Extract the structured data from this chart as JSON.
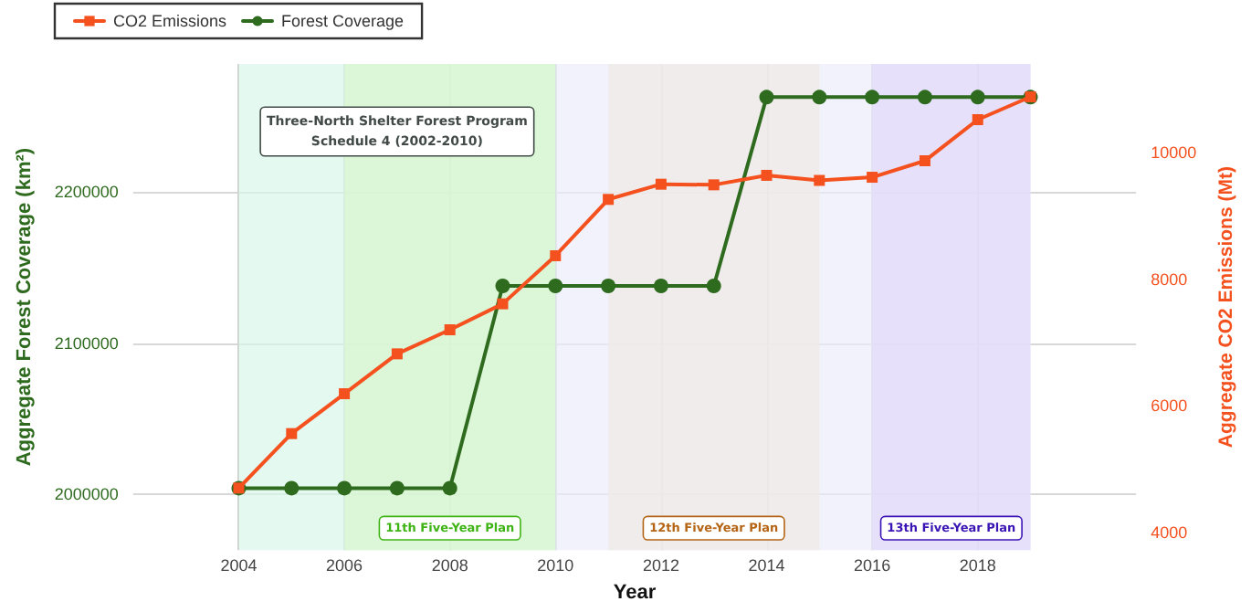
{
  "chart_data": {
    "type": "line",
    "xlabel": "Year",
    "ylabel": "Aggregate Forest Coverage (km²)",
    "y2label": "Aggregate CO2 Emissions (Mt)",
    "x": [
      2004,
      2005,
      2006,
      2007,
      2008,
      2009,
      2010,
      2011,
      2012,
      2013,
      2014,
      2015,
      2016,
      2017,
      2018,
      2019
    ],
    "series": [
      {
        "name": "CO2 Emissions",
        "color": "#f4511e",
        "axis": "y2",
        "marker": "square",
        "values": [
          4700,
          5560,
          6190,
          6820,
          7200,
          7610,
          8370,
          9260,
          9500,
          9490,
          9640,
          9560,
          9610,
          9870,
          10520,
          10880
        ]
      },
      {
        "name": "Forest Coverage",
        "color": "#2e6b1f",
        "marker": "circle",
        "values": [
          2004000,
          2004000,
          2004000,
          2004000,
          2004000,
          2138000,
          2138000,
          2138000,
          2138000,
          2138000,
          2263000,
          2263000,
          2263000,
          2263000,
          2263000,
          2263000
        ]
      }
    ],
    "xlim": [
      2002,
      2021
    ],
    "xticks": [
      2004,
      2006,
      2008,
      2010,
      2012,
      2014,
      2016,
      2018
    ],
    "ylim": [
      1963000,
      2285000
    ],
    "yticks": [
      2000000,
      2100000,
      2200000
    ],
    "y2lim": [
      3720,
      11400
    ],
    "y2ticks": [
      4000,
      6000,
      8000,
      10000
    ],
    "bands": [
      {
        "axis": "x",
        "from": 2010,
        "to": 2019,
        "color": "#ececfb"
      },
      {
        "axis": "x",
        "from": 2004,
        "to": 2010,
        "color": "#d9f7e8",
        "label": "Three-North Shelter Forest Program\nSchedule 4 (2002-2010)"
      },
      {
        "axis": "x",
        "from": 2006,
        "to": 2010,
        "color": "#d9f5cf",
        "label": "11th Five-Year Plan"
      },
      {
        "axis": "x",
        "from": 2011,
        "to": 2015,
        "color": "#eee9e4",
        "label": "12th Five-Year Plan"
      },
      {
        "axis": "x",
        "from": 2016,
        "to": 2019,
        "color": "#e1d9fb",
        "label": "13th Five-Year Plan"
      }
    ],
    "grid": true,
    "legend": "top left",
    "line_style": "solid"
  }
}
